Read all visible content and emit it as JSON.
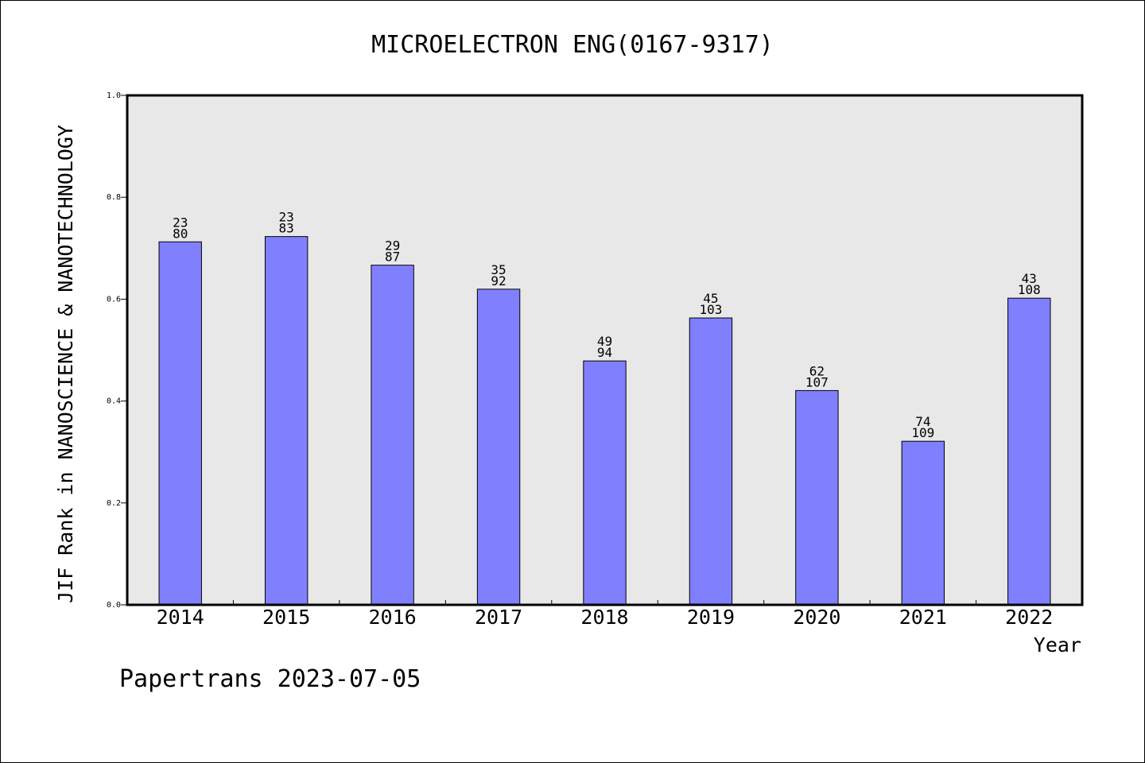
{
  "chart_data": {
    "type": "bar",
    "title": "MICROELECTRON ENG(0167-9317)",
    "xlabel": "Year",
    "ylabel": "JIF Rank in NANOSCIENCE & NANOTECHNOLOGY",
    "categories": [
      "2014",
      "2015",
      "2016",
      "2017",
      "2018",
      "2019",
      "2020",
      "2021",
      "2022"
    ],
    "values": [
      0.7125,
      0.7229,
      0.6667,
      0.6196,
      0.4787,
      0.5631,
      0.4206,
      0.3211,
      0.6019
    ],
    "labels_top": [
      "23",
      "23",
      "29",
      "35",
      "49",
      "45",
      "62",
      "74",
      "43"
    ],
    "labels_bottom": [
      "80",
      "83",
      "87",
      "92",
      "94",
      "103",
      "107",
      "109",
      "108"
    ],
    "ylim": [
      0,
      1.0
    ],
    "yticks": [
      "0.0",
      "0.2",
      "0.4",
      "0.6",
      "0.8",
      "1.0"
    ],
    "grid": false,
    "colors": {
      "bar": "#8080ff",
      "plot_bg": "#e8e8e8"
    }
  },
  "footer": "Papertrans 2023-07-05"
}
